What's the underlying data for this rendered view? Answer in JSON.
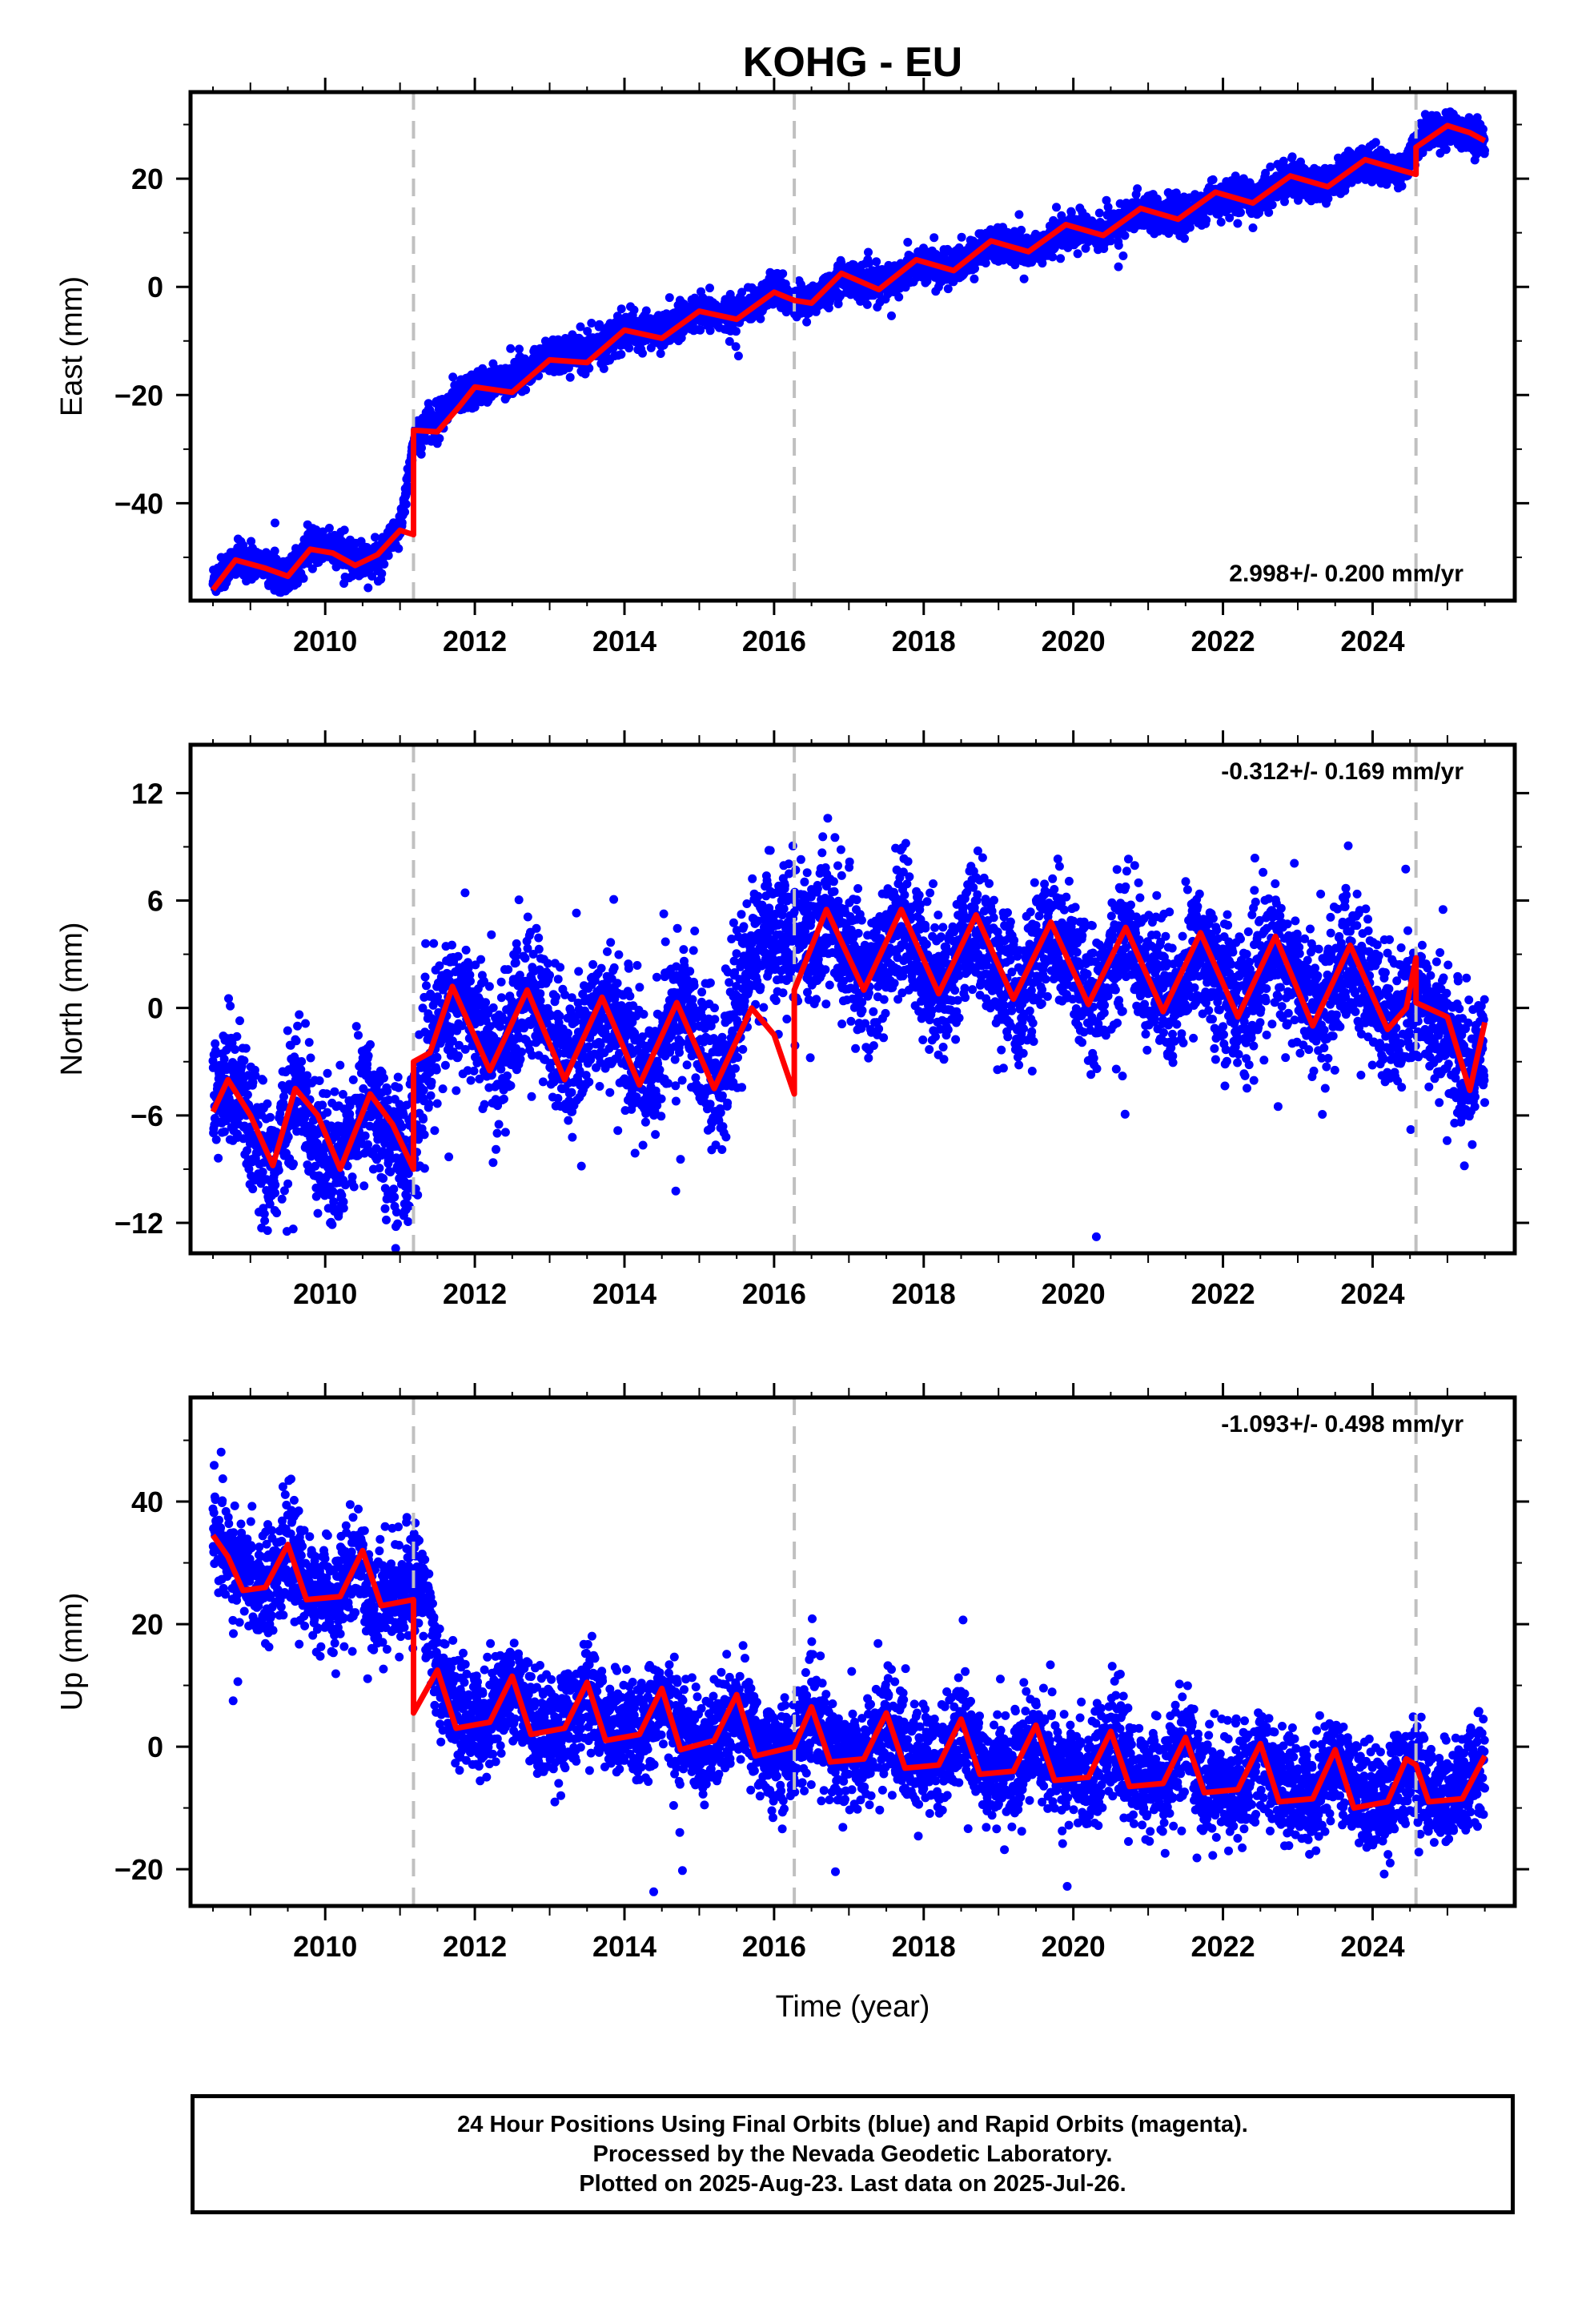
{
  "title": "KOHG - EU",
  "caption": {
    "line1": "24 Hour Positions Using Final Orbits (blue) and Rapid Orbits (magenta).",
    "line2": "Processed by the Nevada Geodetic Laboratory.",
    "line3": "Plotted on 2025-Aug-23. Last data on 2025-Jul-26."
  },
  "colors": {
    "points": "#0000ff",
    "model": "#ff0000",
    "offset_lines": "#c0c0c0",
    "frame": "#000000"
  },
  "chart_data": [
    {
      "type": "scatter",
      "ylabel": "East (mm)",
      "xlabel": "",
      "xlim": [
        2008.2,
        2025.9
      ],
      "ylim": [
        -58,
        36
      ],
      "yticks": [
        -40,
        -20,
        0,
        20
      ],
      "xticks": [
        2010,
        2012,
        2014,
        2016,
        2018,
        2020,
        2022,
        2024
      ],
      "rate_label": "2.998+/- 0.200 mm/yr",
      "rate_position": "bottom-right",
      "offset_years": [
        2011.18,
        2016.27,
        2024.58
      ],
      "series": [
        {
          "type": "scatter",
          "x": [
            2008.5,
            2008.8,
            2009.2,
            2009.5,
            2009.8,
            2010.1,
            2010.4,
            2010.7,
            2011.0,
            2011.2,
            2011.5,
            2011.8,
            2012.2,
            2012.6,
            2013.0,
            2013.5,
            2014.0,
            2014.5,
            2015.0,
            2015.5,
            2016.0,
            2016.4,
            2016.9,
            2017.4,
            2017.9,
            2018.4,
            2018.9,
            2019.4,
            2019.9,
            2020.4,
            2020.9,
            2021.4,
            2021.9,
            2022.4,
            2022.9,
            2023.4,
            2023.9,
            2024.4,
            2024.7,
            2025.0,
            2025.3,
            2025.5
          ],
          "y": [
            -54.5,
            -50.5,
            -51.2,
            -53.8,
            -48.3,
            -48.0,
            -51.0,
            -50.2,
            -45.2,
            -27.5,
            -24.5,
            -20.0,
            -17.8,
            -16.2,
            -12.5,
            -12.2,
            -8.1,
            -8.2,
            -4.8,
            -5.2,
            -0.8,
            -3.4,
            1.8,
            0.2,
            4.2,
            3.2,
            8.0,
            6.5,
            10.5,
            10.2,
            14.2,
            12.5,
            16.2,
            16.3,
            20.0,
            19.0,
            23.3,
            21.2,
            28.5,
            29.4,
            28.2,
            27.0
          ]
        },
        {
          "type": "line",
          "x": [
            2008.5,
            2008.8,
            2009.2,
            2009.5,
            2009.8,
            2010.1,
            2010.4,
            2010.7,
            2011.0,
            2011.18,
            2011.18,
            2011.5,
            2011.8,
            2012.0,
            2012.5,
            2013.0,
            2013.5,
            2014.0,
            2014.5,
            2015.0,
            2015.5,
            2016.0,
            2016.27,
            2016.27,
            2016.5,
            2016.9,
            2017.4,
            2017.9,
            2018.4,
            2018.9,
            2019.4,
            2019.9,
            2020.4,
            2020.9,
            2021.4,
            2021.9,
            2022.4,
            2022.9,
            2023.4,
            2023.9,
            2024.4,
            2024.58,
            2024.58,
            2025.0,
            2025.3,
            2025.5
          ],
          "y": [
            -56.0,
            -50.5,
            -52.0,
            -53.5,
            -48.5,
            -49.2,
            -51.5,
            -49.5,
            -45.0,
            -45.8,
            -26.5,
            -26.8,
            -22.0,
            -18.5,
            -19.5,
            -13.5,
            -14.0,
            -8.0,
            -9.5,
            -4.5,
            -6.0,
            -1.0,
            -2.5,
            -2.5,
            -3.0,
            2.5,
            -0.5,
            5.0,
            3.0,
            8.5,
            6.5,
            11.5,
            9.5,
            14.5,
            12.5,
            17.5,
            15.5,
            20.5,
            18.5,
            23.5,
            21.5,
            20.8,
            25.8,
            29.8,
            28.5,
            27.0
          ]
        }
      ]
    },
    {
      "type": "scatter",
      "ylabel": "North (mm)",
      "xlabel": "",
      "xlim": [
        2008.2,
        2025.9
      ],
      "ylim": [
        -13.7,
        14.7
      ],
      "yticks": [
        -12,
        -6,
        0,
        6,
        12
      ],
      "xticks": [
        2010,
        2012,
        2014,
        2016,
        2018,
        2020,
        2022,
        2024
      ],
      "rate_label": "-0.312+/- 0.169 mm/yr",
      "rate_position": "top-right",
      "offset_years": [
        2011.18,
        2016.27,
        2024.58
      ],
      "series": [
        {
          "type": "scatter",
          "x": [
            2008.5,
            2008.7,
            2009.0,
            2009.3,
            2009.6,
            2009.9,
            2010.1,
            2010.3,
            2010.6,
            2010.9,
            2011.1,
            2011.4,
            2011.7,
            2012.0,
            2012.3,
            2012.7,
            2013.0,
            2013.3,
            2013.7,
            2014.0,
            2014.3,
            2014.7,
            2015.0,
            2015.3,
            2015.7,
            2016.0,
            2016.4,
            2016.7,
            2017.0,
            2017.3,
            2017.7,
            2018.0,
            2018.3,
            2018.7,
            2019.0,
            2019.3,
            2019.7,
            2020.0,
            2020.3,
            2020.7,
            2021.0,
            2021.3,
            2021.7,
            2022.0,
            2022.3,
            2022.7,
            2023.0,
            2023.3,
            2023.7,
            2024.0,
            2024.3,
            2024.7,
            2025.0,
            2025.3,
            2025.5
          ],
          "y": [
            -5.5,
            -4.0,
            -6.5,
            -9.0,
            -4.5,
            -7.0,
            -9.5,
            -7.0,
            -5.0,
            -7.5,
            -8.5,
            -2.5,
            1.0,
            -0.5,
            -3.5,
            1.0,
            -1.0,
            -3.5,
            0.5,
            -1.5,
            -4.0,
            0.2,
            -1.5,
            -4.5,
            3.5,
            4.0,
            3.5,
            5.5,
            3.0,
            1.5,
            5.0,
            2.5,
            1.0,
            5.0,
            2.0,
            0.5,
            4.5,
            2.0,
            0.5,
            4.0,
            2.0,
            0.2,
            3.5,
            1.5,
            0.0,
            3.5,
            1.5,
            -0.5,
            3.0,
            0.5,
            -1.0,
            0.5,
            -1.5,
            -4.0,
            -1.0
          ]
        },
        {
          "type": "line",
          "x": [
            2008.5,
            2008.7,
            2009.0,
            2009.3,
            2009.6,
            2009.9,
            2010.2,
            2010.6,
            2010.9,
            2011.18,
            2011.18,
            2011.4,
            2011.7,
            2012.2,
            2012.7,
            2013.2,
            2013.7,
            2014.2,
            2014.7,
            2015.2,
            2015.7,
            2016.0,
            2016.27,
            2016.27,
            2016.7,
            2017.2,
            2017.7,
            2018.2,
            2018.7,
            2019.2,
            2019.7,
            2020.2,
            2020.7,
            2021.2,
            2021.7,
            2022.2,
            2022.7,
            2023.2,
            2023.7,
            2024.2,
            2024.45,
            2024.58,
            2024.58,
            2025.0,
            2025.3,
            2025.5
          ],
          "y": [
            -5.8,
            -4.0,
            -6.0,
            -8.8,
            -4.5,
            -6.0,
            -9.0,
            -4.8,
            -6.5,
            -9.0,
            -3.0,
            -2.5,
            1.2,
            -3.5,
            1.0,
            -4.0,
            0.6,
            -4.3,
            0.3,
            -4.5,
            0.0,
            -1.5,
            -4.8,
            1.0,
            5.5,
            1.0,
            5.5,
            0.8,
            5.2,
            0.5,
            4.8,
            0.2,
            4.5,
            -0.2,
            4.2,
            -0.5,
            4.0,
            -1.0,
            3.5,
            -1.2,
            0.0,
            2.8,
            0.3,
            -0.5,
            -4.6,
            -0.8
          ]
        }
      ]
    },
    {
      "type": "scatter",
      "ylabel": "Up (mm)",
      "xlabel": "Time (year)",
      "xlim": [
        2008.2,
        2025.9
      ],
      "ylim": [
        -26,
        57
      ],
      "yticks": [
        -20,
        0,
        20,
        40
      ],
      "xticks": [
        2010,
        2012,
        2014,
        2016,
        2018,
        2020,
        2022,
        2024
      ],
      "rate_label": "-1.093+/- 0.498 mm/yr",
      "rate_position": "top-right",
      "offset_years": [
        2011.18,
        2016.27,
        2024.58
      ],
      "series": [
        {
          "type": "scatter",
          "x": [
            2008.5,
            2008.6,
            2008.9,
            2009.2,
            2009.5,
            2009.8,
            2010.1,
            2010.4,
            2010.7,
            2011.0,
            2011.3,
            2011.5,
            2011.8,
            2012.1,
            2012.5,
            2012.8,
            2013.2,
            2013.5,
            2013.8,
            2014.2,
            2014.5,
            2014.8,
            2015.2,
            2015.5,
            2015.8,
            2016.2,
            2016.5,
            2016.8,
            2017.2,
            2017.5,
            2017.8,
            2018.2,
            2018.5,
            2018.8,
            2019.2,
            2019.5,
            2019.8,
            2020.2,
            2020.5,
            2020.8,
            2021.2,
            2021.5,
            2021.8,
            2022.2,
            2022.5,
            2022.8,
            2023.2,
            2023.5,
            2023.8,
            2024.2,
            2024.5,
            2024.8,
            2025.1,
            2025.4,
            2025.5
          ],
          "y": [
            37.0,
            33.0,
            28.0,
            26.0,
            31.0,
            26.0,
            23.0,
            29.0,
            24.0,
            25.0,
            28.0,
            12.0,
            5.0,
            4.0,
            10.0,
            4.0,
            3.0,
            9.0,
            3.0,
            2.0,
            8.0,
            1.0,
            0.0,
            7.0,
            0.0,
            -1.0,
            5.0,
            -1.0,
            -2.0,
            4.0,
            -2.0,
            -3.0,
            3.0,
            -3.0,
            -4.0,
            2.0,
            -4.0,
            -5.0,
            1.0,
            -5.0,
            -6.0,
            0.0,
            -6.0,
            -7.0,
            -1.0,
            -7.0,
            -8.0,
            -2.0,
            -8.0,
            -8.5,
            -3.0,
            -8.0,
            -9.0,
            -3.0,
            -2.0
          ]
        },
        {
          "type": "line",
          "x": [
            2008.5,
            2008.7,
            2008.9,
            2009.2,
            2009.5,
            2009.75,
            2010.2,
            2010.5,
            2010.75,
            2011.18,
            2011.18,
            2011.5,
            2011.75,
            2012.2,
            2012.5,
            2012.75,
            2013.2,
            2013.5,
            2013.75,
            2014.2,
            2014.5,
            2014.75,
            2015.2,
            2015.5,
            2015.75,
            2016.27,
            2016.27,
            2016.5,
            2016.75,
            2017.2,
            2017.5,
            2017.75,
            2018.2,
            2018.5,
            2018.75,
            2019.2,
            2019.5,
            2019.75,
            2020.2,
            2020.5,
            2020.75,
            2021.2,
            2021.5,
            2021.75,
            2022.2,
            2022.5,
            2022.75,
            2023.2,
            2023.5,
            2023.75,
            2024.2,
            2024.45,
            2024.58,
            2024.58,
            2024.75,
            2025.2,
            2025.5
          ],
          "y": [
            34.5,
            31.0,
            25.5,
            26.0,
            33.0,
            24.0,
            24.5,
            32.0,
            23.0,
            24.0,
            5.5,
            12.5,
            3.0,
            4.0,
            11.5,
            2.0,
            3.0,
            10.5,
            1.0,
            2.0,
            9.5,
            -0.5,
            1.0,
            8.5,
            -1.5,
            0.0,
            0.0,
            6.5,
            -2.5,
            -2.0,
            5.5,
            -3.5,
            -3.0,
            4.5,
            -4.5,
            -4.0,
            3.5,
            -5.5,
            -5.0,
            2.5,
            -6.5,
            -6.0,
            1.5,
            -7.5,
            -7.0,
            0.5,
            -9.0,
            -8.5,
            -0.5,
            -10.0,
            -9.0,
            -2.0,
            -3.0,
            -3.0,
            -9.0,
            -8.5,
            -1.5
          ]
        }
      ]
    }
  ]
}
